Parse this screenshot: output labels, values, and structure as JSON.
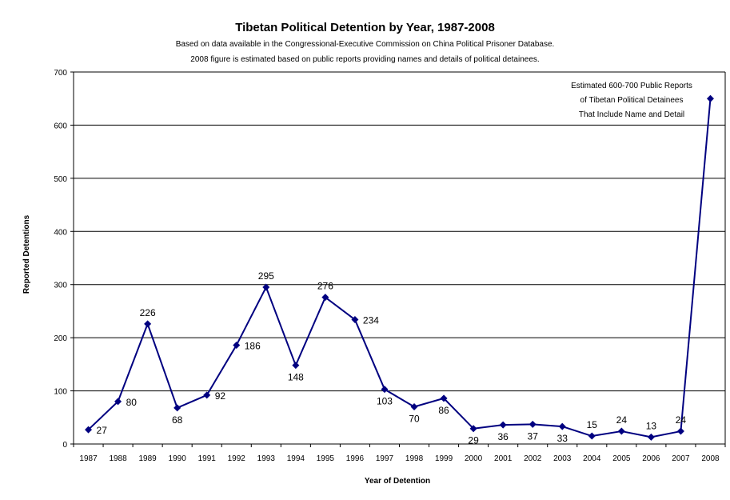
{
  "chart_data": {
    "type": "line",
    "title": "Tibetan Political Detention by Year, 1987-2008",
    "subtitle_lines": [
      "Based on data available in the Congressional-Executive Commission on China Political Prisoner Database.",
      "2008 figure is estimated based on public reports providing names and details of political detainees."
    ],
    "xlabel": "Year of Detention",
    "ylabel": "Reported Detentions",
    "ylim": [
      0,
      700
    ],
    "yticks": [
      0,
      100,
      200,
      300,
      400,
      500,
      600,
      700
    ],
    "grid": true,
    "categories": [
      "1987",
      "1988",
      "1989",
      "1990",
      "1991",
      "1992",
      "1993",
      "1994",
      "1995",
      "1996",
      "1997",
      "1998",
      "1999",
      "2000",
      "2001",
      "2002",
      "2003",
      "2004",
      "2005",
      "2006",
      "2007",
      "2008"
    ],
    "values": [
      27,
      80,
      226,
      68,
      92,
      186,
      295,
      148,
      276,
      234,
      103,
      70,
      86,
      29,
      36,
      37,
      33,
      15,
      24,
      13,
      24,
      650
    ],
    "data_labels": [
      "27",
      "80",
      "226",
      "68",
      "92",
      "186",
      "295",
      "148",
      "276",
      "234",
      "103",
      "70",
      "86",
      "29",
      "36",
      "37",
      "33",
      "15",
      "24",
      "13",
      "24",
      ""
    ],
    "annotation": [
      "Estimated 600-700 Public Reports",
      "of Tibetan Political Detainees",
      "That Include Name and Detail"
    ],
    "colors": {
      "series": "#000080",
      "grid": "#000000"
    }
  }
}
